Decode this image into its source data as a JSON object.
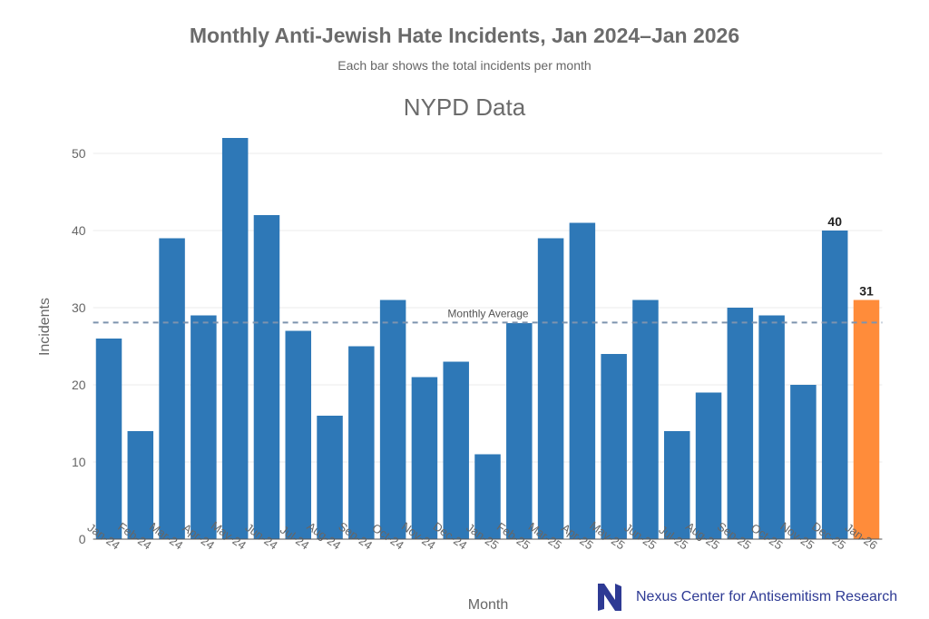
{
  "chart_data": {
    "type": "bar",
    "title": "Monthly Anti-Jewish Hate Incidents, Jan 2024–Jan 2026",
    "subtitle": "Each bar shows the total incidents per month",
    "chart_title": "NYPD Data",
    "xlabel": "Month",
    "ylabel": "Incidents",
    "ylim": [
      0,
      55
    ],
    "yticks": [
      0,
      10,
      20,
      30,
      40,
      50
    ],
    "grid": true,
    "categories": [
      "Jan-24",
      "Feb-24",
      "Mar-24",
      "Apr-24",
      "May-24",
      "Jun-24",
      "Jul-24",
      "Aug-24",
      "Sep-24",
      "Oct-24",
      "Nov-24",
      "Dec-24",
      "Jan-25",
      "Feb-25",
      "Mar-25",
      "Apr-25",
      "May-25",
      "Jun-25",
      "Jul-25",
      "Aug-25",
      "Sep-25",
      "Oct-25",
      "Nov-25",
      "Dec-25",
      "Jan-26"
    ],
    "values": [
      26,
      14,
      39,
      29,
      52,
      42,
      27,
      16,
      25,
      31,
      21,
      23,
      11,
      28,
      39,
      41,
      24,
      31,
      14,
      19,
      30,
      29,
      20,
      40,
      31
    ],
    "bar_color": "#2e78b7",
    "highlight_color": "#ff8c3a",
    "highlight_index": 24,
    "data_labels": [
      {
        "index": 23,
        "text": "40"
      },
      {
        "index": 24,
        "text": "31"
      }
    ],
    "reference_line": {
      "label": "Monthly Average",
      "value": 28.08,
      "color": "#7d93ae"
    }
  },
  "branding": {
    "organization": "Nexus Center for Antisemitism Research",
    "color": "#2e3a94"
  }
}
